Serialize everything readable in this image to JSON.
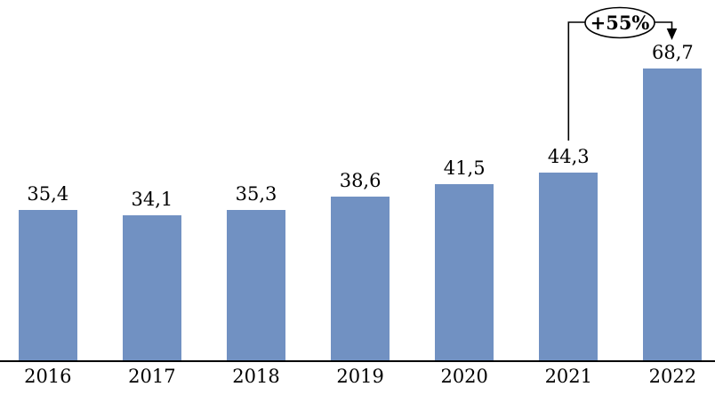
{
  "chart_data": {
    "type": "bar",
    "title": "",
    "xlabel": "",
    "ylabel": "",
    "categories": [
      "2016",
      "2017",
      "2018",
      "2019",
      "2020",
      "2021",
      "2022"
    ],
    "values": [
      35.4,
      34.1,
      35.3,
      38.6,
      41.5,
      44.3,
      68.7
    ],
    "value_labels": [
      "35,4",
      "34,1",
      "35,3",
      "38,6",
      "41,5",
      "44,3",
      "68,7"
    ],
    "ylim": [
      0,
      85
    ],
    "grid": false,
    "legend": null,
    "bar_color": "#7191C2",
    "axis_color": "#000000",
    "annotation": {
      "label": "+55%",
      "from_category": "2021",
      "to_category": "2022",
      "shape": "ellipse-with-bracket-and-arrow",
      "ellipse_fill": "#FFFFFF",
      "line_color": "#000000"
    }
  }
}
